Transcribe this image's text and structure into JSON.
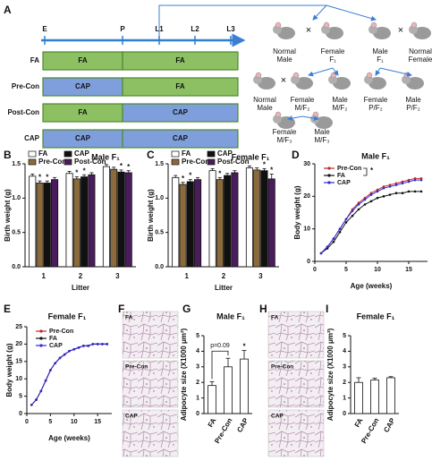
{
  "panels": [
    "A",
    "B",
    "C",
    "D",
    "E",
    "F",
    "G",
    "H",
    "I"
  ],
  "diagram": {
    "timeline": [
      "E",
      "P",
      "L1",
      "L2",
      "L3"
    ],
    "rows": [
      {
        "label": "FA",
        "periods": [
          "FA",
          "FA"
        ]
      },
      {
        "label": "Pre-Con",
        "periods": [
          "CAP",
          "FA"
        ]
      },
      {
        "label": "Post-Con",
        "periods": [
          "FA",
          "CAP"
        ]
      },
      {
        "label": "CAP",
        "periods": [
          "CAP",
          "CAP"
        ]
      }
    ],
    "period_colors": {
      "FA": "#8dc063",
      "CAP": "#7f9fdc"
    },
    "cross_symbol": "×",
    "pedigree": [
      {
        "lines": [
          "Normal",
          "Male"
        ]
      },
      {
        "lines": [
          "Female",
          "F₁"
        ]
      },
      {
        "lines": [
          "Male",
          "F₁"
        ]
      },
      {
        "lines": [
          "Normal",
          "Female"
        ]
      },
      {
        "lines": [
          "Normal",
          "Male"
        ]
      },
      {
        "lines": [
          "Female",
          "M/F₂"
        ]
      },
      {
        "lines": [
          "Male",
          "M/F₂"
        ]
      },
      {
        "lines": [
          "Female",
          "P/F₂"
        ]
      },
      {
        "lines": [
          "Male",
          "P/F₂"
        ]
      },
      {
        "lines": [
          "Female",
          "M/F₃"
        ]
      },
      {
        "lines": [
          "Male",
          "M/F₃"
        ]
      }
    ]
  },
  "images": [
    [
      "FA",
      "Pre-Con",
      "CAP"
    ],
    [
      "FA",
      "Pre-Con",
      "CAP"
    ]
  ],
  "chart_data": [
    {
      "type": "bar",
      "title": "Male F₁",
      "xlabel": "Litter",
      "ylabel": "Birth weight (g)",
      "categories": [
        "1",
        "2",
        "3"
      ],
      "series": [
        {
          "name": "FA",
          "color": "#ffffff",
          "values": [
            1.32,
            1.36,
            1.46
          ],
          "errors": [
            0.03,
            0.03,
            0.03
          ]
        },
        {
          "name": "Pre-Con",
          "color": "#8b6b3d",
          "values": [
            1.22,
            1.28,
            1.42
          ],
          "errors": [
            0.03,
            0.03,
            0.03
          ]
        },
        {
          "name": "CAP",
          "color": "#111111",
          "values": [
            1.22,
            1.31,
            1.38
          ],
          "errors": [
            0.03,
            0.03,
            0.03
          ]
        },
        {
          "name": "Post-Con",
          "color": "#4a1c5c",
          "values": [
            1.27,
            1.34,
            1.37
          ],
          "errors": [
            0.03,
            0.03,
            0.03
          ]
        }
      ],
      "ylim": [
        0,
        1.5
      ],
      "yticks": [
        {
          "value": 0,
          "label": "0.0"
        },
        0.5,
        {
          "value": 1,
          "label": "1.0"
        },
        1.5
      ],
      "annotations": [
        {
          "text": "*",
          "series": 1,
          "category": 0
        },
        {
          "text": "*",
          "series": 2,
          "category": 0
        },
        {
          "text": "*",
          "series": 1,
          "category": 1
        },
        {
          "text": "*",
          "series": 2,
          "category": 1
        },
        {
          "text": "*",
          "series": 2,
          "category": 2
        },
        {
          "text": "*",
          "series": 3,
          "category": 2
        }
      ]
    },
    {
      "type": "bar",
      "title": "Female F₁",
      "xlabel": "Litter",
      "ylabel": "Birth weight (g)",
      "categories": [
        "1",
        "2",
        "3"
      ],
      "series": [
        {
          "name": "FA",
          "color": "#ffffff",
          "values": [
            1.3,
            1.4,
            1.44
          ],
          "errors": [
            0.03,
            0.03,
            0.03
          ]
        },
        {
          "name": "Pre-Con",
          "color": "#8b6b3d",
          "values": [
            1.2,
            1.27,
            1.41
          ],
          "errors": [
            0.03,
            0.03,
            0.03
          ]
        },
        {
          "name": "CAP",
          "color": "#111111",
          "values": [
            1.24,
            1.33,
            1.4
          ],
          "errors": [
            0.03,
            0.03,
            0.03
          ]
        },
        {
          "name": "Post-Con",
          "color": "#4a1c5c",
          "values": [
            1.27,
            1.37,
            1.28
          ],
          "errors": [
            0.03,
            0.03,
            0.07
          ]
        }
      ],
      "ylim": [
        0,
        1.5
      ],
      "yticks": [
        {
          "value": 0,
          "label": "0.0"
        },
        0.5,
        {
          "value": 1,
          "label": "1.0"
        },
        1.5
      ],
      "annotations": [
        {
          "text": "*",
          "series": 1,
          "category": 0
        },
        {
          "text": "*",
          "series": 2,
          "category": 0
        },
        {
          "text": "*",
          "series": 1,
          "category": 1
        },
        {
          "text": "*",
          "series": 2,
          "category": 2
        },
        {
          "text": "*",
          "series": 3,
          "category": 2
        }
      ]
    },
    {
      "type": "line",
      "title": "Male F₁",
      "xlabel": "Age (weeks)",
      "ylabel": "Body weight (g)",
      "legend": "top-left",
      "x": [
        1,
        2,
        3,
        4,
        5,
        6,
        7,
        8,
        9,
        10,
        11,
        12,
        13,
        14,
        15,
        16,
        17
      ],
      "series": [
        {
          "name": "Pre-Con",
          "color": "#c0282d",
          "values": [
            2.5,
            4.5,
            7,
            10,
            13,
            16,
            18,
            19.5,
            21,
            22,
            23,
            23.5,
            24,
            24.5,
            25,
            25.5,
            25.5
          ]
        },
        {
          "name": "FA",
          "color": "#111111",
          "values": [
            2.5,
            4,
            6,
            9,
            12,
            14,
            16,
            17.5,
            18.5,
            19.5,
            20,
            20.5,
            21,
            21,
            21.5,
            21.5,
            21.5
          ]
        },
        {
          "name": "CAP",
          "color": "#2b2bd6",
          "values": [
            2.5,
            4.5,
            7,
            10,
            13,
            15.5,
            17.5,
            19,
            20.5,
            21.5,
            22.5,
            23,
            23.5,
            24,
            24.5,
            25,
            25
          ]
        }
      ],
      "xlim": [
        0,
        18
      ],
      "xticks": [
        0,
        5,
        10,
        15
      ],
      "ylim": [
        0,
        30
      ],
      "yticks": [
        0,
        10,
        20,
        30
      ],
      "annotations": [
        {
          "text": "*"
        }
      ]
    },
    {
      "type": "line",
      "title": "Female F₁",
      "xlabel": "Age (weeks)",
      "ylabel": "Body weight (g)",
      "legend": "top-left",
      "x": [
        1,
        2,
        3,
        4,
        5,
        6,
        7,
        8,
        9,
        10,
        11,
        12,
        13,
        14,
        15,
        16,
        17
      ],
      "series": [
        {
          "name": "Pre-Con",
          "color": "#c0282d",
          "values": [
            2.5,
            4,
            6.5,
            9.5,
            12.5,
            14.5,
            16,
            17,
            18,
            18.5,
            19,
            19.5,
            19.5,
            20,
            20,
            20,
            20
          ]
        },
        {
          "name": "FA",
          "color": "#111111",
          "values": [
            2.5,
            4,
            6.5,
            9.5,
            12.5,
            14.5,
            16,
            17,
            18,
            18.5,
            19,
            19.5,
            19.5,
            20,
            20,
            20,
            20
          ]
        },
        {
          "name": "CAP",
          "color": "#2b2bd6",
          "values": [
            2.5,
            4,
            6.5,
            9.5,
            12.5,
            14.5,
            16,
            17,
            18,
            18.5,
            19,
            19.5,
            19.5,
            20,
            20,
            20,
            20
          ]
        }
      ],
      "xlim": [
        0,
        18
      ],
      "xticks": [
        0,
        5,
        10,
        15
      ],
      "ylim": [
        0,
        25
      ],
      "yticks": [
        0,
        5,
        10,
        15,
        20,
        25
      ],
      "annotations": []
    },
    {
      "type": "bar",
      "title": "Male F₁",
      "ylabel": "Adipocyte size (X1000 μm²)",
      "categories": [
        "FA",
        "Pre-Con",
        "CAP"
      ],
      "color": "#ffffff",
      "values": [
        1.8,
        3.0,
        3.5
      ],
      "errors": [
        0.25,
        0.55,
        0.55
      ],
      "ylim": [
        0,
        5
      ],
      "yticks": [
        0,
        1,
        2,
        3,
        4,
        5
      ],
      "annotations": [
        {
          "text": "p=0.09",
          "from": 0,
          "to": 1
        },
        {
          "text": "*",
          "category": 2
        }
      ]
    },
    {
      "type": "bar",
      "title": "Female F₁",
      "ylabel": "Adipocyte size (X1000 μm²)",
      "categories": [
        "FA",
        "Pre-Con",
        "CAP"
      ],
      "color": "#ffffff",
      "values": [
        2.0,
        2.15,
        2.3
      ],
      "errors": [
        0.3,
        0.12,
        0.07
      ],
      "ylim": [
        0,
        5
      ],
      "yticks": [
        0,
        1,
        2,
        3,
        4,
        5
      ],
      "annotations": []
    }
  ]
}
